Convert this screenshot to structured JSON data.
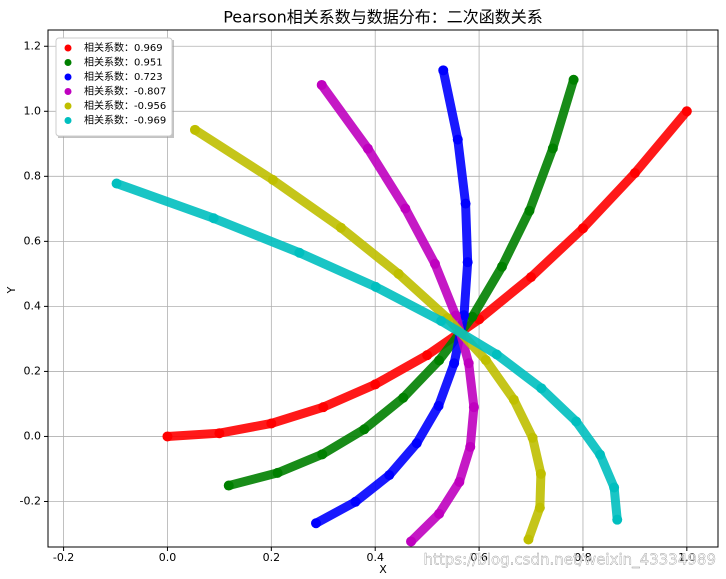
{
  "chart_data": {
    "type": "scatter",
    "title": "Pearson相关系数与数据分布：二次函数关系",
    "xlabel": "X",
    "ylabel": "Y",
    "xlim": [
      -0.23,
      1.06
    ],
    "ylim": [
      -0.34,
      1.25
    ],
    "xticks": [
      -0.2,
      {
        "value": 0,
        "label": "0.0"
      },
      0.2,
      0.4,
      0.6,
      0.8,
      {
        "value": 1,
        "label": "1.0"
      }
    ],
    "yticks": [
      -0.2,
      {
        "value": 0,
        "label": "0.0"
      },
      0.2,
      0.4,
      0.6,
      0.8,
      {
        "value": 1,
        "label": "1.0"
      },
      1.2
    ],
    "grid": true,
    "legend": "upper left",
    "watermark": "https://blog.csdn.net/weixin_43334989",
    "series": [
      {
        "name": "相关系数：0.969",
        "color": "#ff0000",
        "x": [
          0,
          0.1,
          0.2,
          0.3,
          0.4,
          0.5,
          0.6,
          0.7,
          0.8,
          0.9,
          1.0
        ],
        "values": [
          0,
          0.01,
          0.04,
          0.09,
          0.16,
          0.25,
          0.36,
          0.49,
          0.64,
          0.81,
          1.0
        ]
      },
      {
        "name": "相关系数：0.951",
        "color": "#008000",
        "x": [
          0.118,
          0.212,
          0.298,
          0.379,
          0.454,
          0.523,
          0.587,
          0.644,
          0.697,
          0.742,
          0.782
        ],
        "values": [
          -0.151,
          -0.112,
          -0.055,
          0.022,
          0.119,
          0.234,
          0.368,
          0.522,
          0.694,
          0.886,
          1.097
        ]
      },
      {
        "name": "相关系数：0.723",
        "color": "#0000ff",
        "x": [
          0.286,
          0.362,
          0.427,
          0.48,
          0.522,
          0.552,
          0.571,
          0.578,
          0.574,
          0.559,
          0.531
        ],
        "values": [
          -0.267,
          -0.201,
          -0.119,
          -0.021,
          0.094,
          0.225,
          0.373,
          0.536,
          0.716,
          0.913,
          1.126
        ]
      },
      {
        "name": "相关系数：-0.807",
        "color": "#bf00bf",
        "x": [
          0.469,
          0.523,
          0.562,
          0.583,
          0.59,
          0.58,
          0.555,
          0.515,
          0.458,
          0.386,
          0.297
        ],
        "values": [
          -0.323,
          -0.238,
          -0.14,
          -0.032,
          0.09,
          0.225,
          0.372,
          0.531,
          0.701,
          0.885,
          1.081
        ]
      },
      {
        "name": "相关系数：-0.956",
        "color": "#bfbf00",
        "x": [
          0.695,
          0.717,
          0.719,
          0.703,
          0.667,
          0.613,
          0.539,
          0.445,
          0.334,
          0.203,
          0.053
        ],
        "values": [
          -0.317,
          -0.219,
          -0.115,
          -0.004,
          0.113,
          0.235,
          0.364,
          0.5,
          0.642,
          0.789,
          0.943
        ]
      },
      {
        "name": "相关系数：-0.969",
        "color": "#00bfbf",
        "x": [
          0.866,
          0.86,
          0.833,
          0.787,
          0.72,
          0.634,
          0.527,
          0.401,
          0.254,
          0.089,
          -0.098
        ],
        "values": [
          -0.256,
          -0.157,
          -0.056,
          0.046,
          0.148,
          0.252,
          0.355,
          0.46,
          0.565,
          0.671,
          0.778
        ]
      }
    ]
  }
}
